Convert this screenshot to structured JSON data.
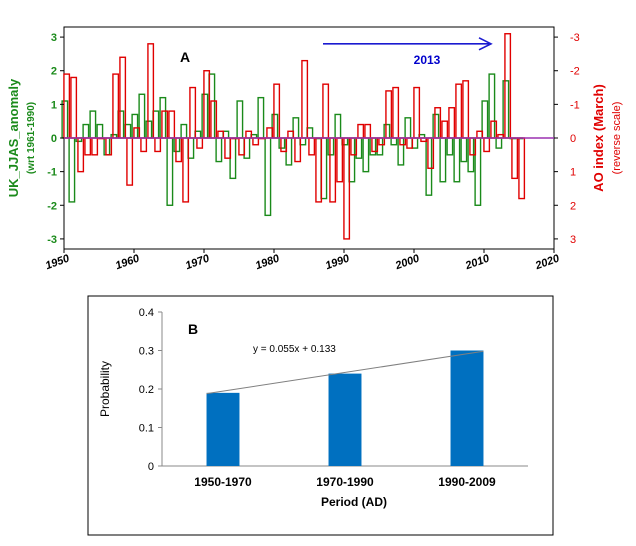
{
  "chart_data": [
    {
      "type": "bar",
      "panel_label": "A",
      "x": [
        1950,
        1951,
        1952,
        1953,
        1954,
        1955,
        1956,
        1957,
        1958,
        1959,
        1960,
        1961,
        1962,
        1963,
        1964,
        1965,
        1966,
        1967,
        1968,
        1969,
        1970,
        1971,
        1972,
        1973,
        1974,
        1975,
        1976,
        1977,
        1978,
        1979,
        1980,
        1981,
        1982,
        1983,
        1984,
        1985,
        1986,
        1987,
        1988,
        1989,
        1990,
        1991,
        1992,
        1993,
        1994,
        1995,
        1996,
        1997,
        1998,
        1999,
        2000,
        2001,
        2002,
        2003,
        2004,
        2005,
        2006,
        2007,
        2008,
        2009,
        2010,
        2011,
        2012,
        2013,
        2014,
        2015
      ],
      "xlim": [
        1950,
        2020
      ],
      "x_ticks": [
        "1950",
        "1960",
        "1970",
        "1980",
        "1990",
        "2000",
        "2010",
        "2020"
      ],
      "series": [
        {
          "name": "UK_JJAS_anomaly",
          "axis": "left",
          "color": "#1a8a1a",
          "values": [
            1.1,
            -1.9,
            -0.1,
            0.4,
            0.8,
            0.4,
            -0.5,
            0.1,
            0.8,
            0.4,
            0.7,
            1.3,
            0.5,
            0.8,
            1.2,
            -2.0,
            -0.4,
            0.4,
            -0.6,
            0.2,
            1.3,
            1.9,
            -0.7,
            0.2,
            -1.2,
            1.1,
            -0.6,
            0.1,
            1.2,
            -2.3,
            0.7,
            -0.3,
            -0.8,
            0.6,
            -0.2,
            0.3,
            0.0,
            -1.8,
            -0.5,
            0.7,
            -0.2,
            -1.3,
            -0.6,
            -1.0,
            -0.5,
            -0.5,
            0.4,
            -0.2,
            -0.8,
            0.6,
            -0.3,
            0.1,
            -1.7,
            0.7,
            -1.3,
            -0.5,
            -1.3,
            -0.7,
            -1.0,
            -2.0,
            1.1,
            1.9,
            -0.3,
            1.7,
            0.0,
            0.0
          ]
        },
        {
          "name": "AO index (March)",
          "axis": "right",
          "color": "#e00000",
          "values": [
            -1.9,
            -1.8,
            1.0,
            0.5,
            0.5,
            0.0,
            0.5,
            -1.9,
            -2.4,
            1.4,
            -0.3,
            0.4,
            -2.8,
            0.4,
            -0.8,
            -0.8,
            0.7,
            1.9,
            -1.5,
            0.3,
            -2.0,
            -1.1,
            -0.2,
            0.6,
            0.0,
            0.5,
            -0.2,
            0.2,
            0.0,
            -0.3,
            -1.6,
            0.4,
            -0.2,
            0.7,
            -2.3,
            0.5,
            1.9,
            -1.6,
            1.9,
            1.3,
            3.0,
            0.5,
            -0.4,
            -0.4,
            0.4,
            0.2,
            -1.4,
            -1.5,
            0.2,
            0.3,
            -1.5,
            0.1,
            0.9,
            -0.9,
            -0.5,
            -0.9,
            -1.6,
            -1.7,
            0.5,
            -0.2,
            0.4,
            -0.5,
            -0.1,
            -3.1,
            1.2,
            1.8
          ]
        }
      ],
      "ylim_left": [
        -3.3,
        3.3
      ],
      "y_ticks_left": [
        "3",
        "2",
        "1",
        "0",
        "-1",
        "-2",
        "-3"
      ],
      "ylim_right": [
        3.3,
        -3.3
      ],
      "y_ticks_right": [
        "-3",
        "-2",
        "-1",
        "0",
        "1",
        "2",
        "3"
      ],
      "ylabel_left": "UK_JJAS_anomaly",
      "ylabel_left_sub": "(wrt 1961-1990)",
      "ylabel_right": "AO index (March)",
      "ylabel_right_sub": "(reverse scale)",
      "annotation": {
        "text": "2013",
        "from_x": 1987,
        "to_x": 2011,
        "y": 2.8
      },
      "zero_line_color": "#9b30b0"
    },
    {
      "type": "bar",
      "panel_label": "B",
      "categories": [
        "1950-1970",
        "1970-1990",
        "1990-2009"
      ],
      "values": [
        0.19,
        0.24,
        0.3
      ],
      "color": "#0070c0",
      "ylim": [
        0,
        0.4
      ],
      "y_ticks": [
        "0",
        "0.1",
        "0.2",
        "0.3",
        "0.4"
      ],
      "ylabel": "Probability",
      "xlabel": "Period (AD)",
      "trendline": {
        "equation": "y = 0.055x + 0.133",
        "slope": 0.055,
        "intercept": 0.133
      }
    }
  ]
}
